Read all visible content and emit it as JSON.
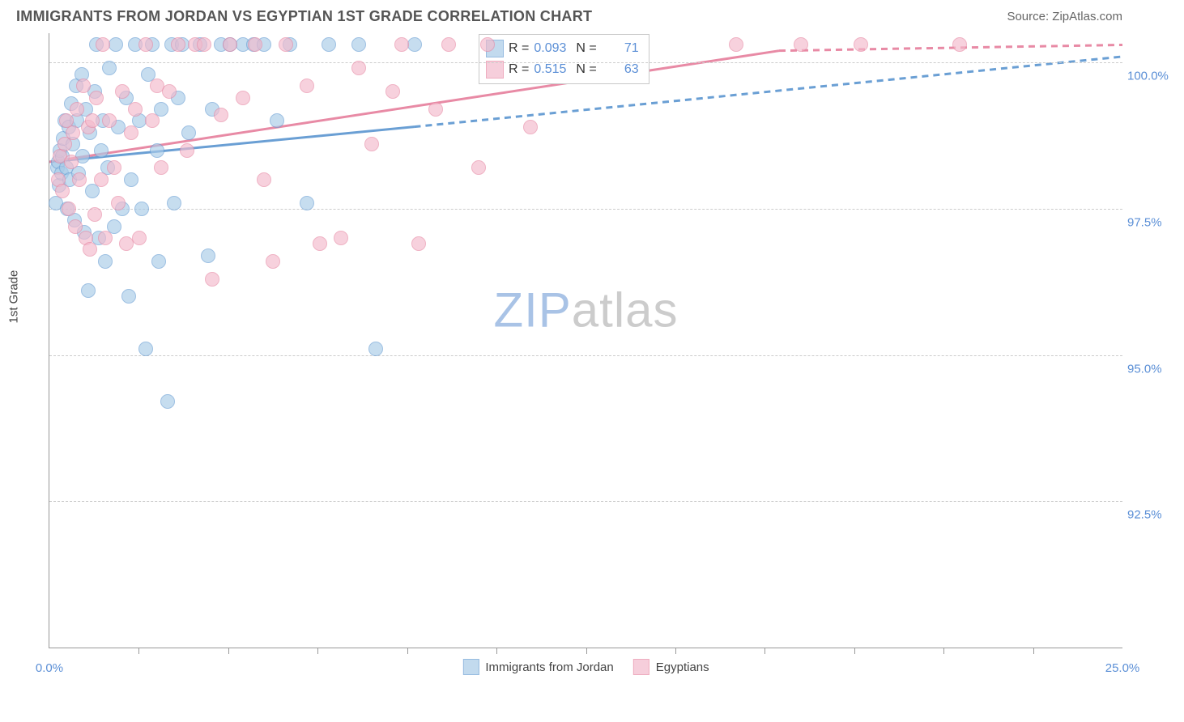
{
  "title": "IMMIGRANTS FROM JORDAN VS EGYPTIAN 1ST GRADE CORRELATION CHART",
  "source": "Source: ZipAtlas.com",
  "watermark": {
    "left": "ZIP",
    "right": "atlas"
  },
  "chart": {
    "type": "scatter",
    "background_color": "#ffffff",
    "grid_color": "#cccccc",
    "axis_color": "#999999",
    "ylabel": "1st Grade",
    "xlim": [
      0.0,
      25.0
    ],
    "ylim": [
      90.0,
      100.5
    ],
    "xticks": [
      0.0,
      25.0
    ],
    "xtick_labels": [
      "0.0%",
      "25.0%"
    ],
    "xtick_minor": [
      2.083,
      4.167,
      6.25,
      8.333,
      10.417,
      12.5,
      14.583,
      16.667,
      18.75,
      20.833,
      22.917
    ],
    "yticks": [
      92.5,
      95.0,
      97.5,
      100.0
    ],
    "ytick_labels": [
      "92.5%",
      "95.0%",
      "97.5%",
      "100.0%"
    ],
    "label_fontsize": 15,
    "tick_label_color": "#5b8fd6",
    "marker_radius": 9,
    "marker_stroke_width": 1.5,
    "marker_fill_opacity": 0.3,
    "series": [
      {
        "name": "Immigrants from Jordan",
        "color_stroke": "#6a9fd4",
        "color_fill": "#a9cbe8",
        "R": "0.093",
        "N": "71",
        "trend": {
          "solid": {
            "x1": 0.0,
            "y1": 98.3,
            "x2": 8.5,
            "y2": 98.9
          },
          "dashed": {
            "x1": 8.5,
            "y1": 98.9,
            "x2": 25.0,
            "y2": 100.1
          },
          "stroke_width": 3,
          "dash": "8,6"
        },
        "points": [
          [
            0.15,
            97.6
          ],
          [
            0.18,
            98.2
          ],
          [
            0.2,
            98.3
          ],
          [
            0.22,
            97.9
          ],
          [
            0.25,
            98.5
          ],
          [
            0.28,
            98.1
          ],
          [
            0.3,
            98.4
          ],
          [
            0.32,
            98.7
          ],
          [
            0.35,
            99.0
          ],
          [
            0.4,
            98.2
          ],
          [
            0.42,
            97.5
          ],
          [
            0.45,
            98.9
          ],
          [
            0.48,
            98.0
          ],
          [
            0.5,
            99.3
          ],
          [
            0.55,
            98.6
          ],
          [
            0.58,
            97.3
          ],
          [
            0.62,
            99.6
          ],
          [
            0.65,
            99.0
          ],
          [
            0.68,
            98.1
          ],
          [
            0.75,
            99.8
          ],
          [
            0.78,
            98.4
          ],
          [
            0.82,
            97.1
          ],
          [
            0.85,
            99.2
          ],
          [
            0.9,
            96.1
          ],
          [
            0.95,
            98.8
          ],
          [
            1.0,
            97.8
          ],
          [
            1.05,
            99.5
          ],
          [
            1.1,
            100.3
          ],
          [
            1.15,
            97.0
          ],
          [
            1.2,
            98.5
          ],
          [
            1.25,
            99.0
          ],
          [
            1.3,
            96.6
          ],
          [
            1.35,
            98.2
          ],
          [
            1.4,
            99.9
          ],
          [
            1.5,
            97.2
          ],
          [
            1.55,
            100.3
          ],
          [
            1.6,
            98.9
          ],
          [
            1.7,
            97.5
          ],
          [
            1.8,
            99.4
          ],
          [
            1.85,
            96.0
          ],
          [
            1.9,
            98.0
          ],
          [
            2.0,
            100.3
          ],
          [
            2.1,
            99.0
          ],
          [
            2.15,
            97.5
          ],
          [
            2.25,
            95.1
          ],
          [
            2.3,
            99.8
          ],
          [
            2.4,
            100.3
          ],
          [
            2.5,
            98.5
          ],
          [
            2.55,
            96.6
          ],
          [
            2.6,
            99.2
          ],
          [
            2.75,
            94.2
          ],
          [
            2.85,
            100.3
          ],
          [
            2.9,
            97.6
          ],
          [
            3.0,
            99.4
          ],
          [
            3.1,
            100.3
          ],
          [
            3.25,
            98.8
          ],
          [
            3.5,
            100.3
          ],
          [
            3.7,
            96.7
          ],
          [
            3.8,
            99.2
          ],
          [
            4.0,
            100.3
          ],
          [
            4.2,
            100.3
          ],
          [
            4.5,
            100.3
          ],
          [
            4.75,
            100.3
          ],
          [
            5.0,
            100.3
          ],
          [
            5.3,
            99.0
          ],
          [
            5.6,
            100.3
          ],
          [
            6.0,
            97.6
          ],
          [
            6.5,
            100.3
          ],
          [
            7.2,
            100.3
          ],
          [
            7.6,
            95.1
          ],
          [
            8.5,
            100.3
          ]
        ]
      },
      {
        "name": "Egyptians",
        "color_stroke": "#e88aa5",
        "color_fill": "#f3bacc",
        "R": "0.515",
        "N": "63",
        "trend": {
          "solid": {
            "x1": 0.0,
            "y1": 98.3,
            "x2": 17.0,
            "y2": 100.2
          },
          "dashed": {
            "x1": 17.0,
            "y1": 100.2,
            "x2": 25.0,
            "y2": 100.3
          },
          "stroke_width": 3,
          "dash": "8,6"
        },
        "points": [
          [
            0.2,
            98.0
          ],
          [
            0.25,
            98.4
          ],
          [
            0.3,
            97.8
          ],
          [
            0.35,
            98.6
          ],
          [
            0.4,
            99.0
          ],
          [
            0.45,
            97.5
          ],
          [
            0.5,
            98.3
          ],
          [
            0.55,
            98.8
          ],
          [
            0.6,
            97.2
          ],
          [
            0.65,
            99.2
          ],
          [
            0.7,
            98.0
          ],
          [
            0.8,
            99.6
          ],
          [
            0.85,
            97.0
          ],
          [
            0.9,
            98.9
          ],
          [
            0.95,
            96.8
          ],
          [
            1.0,
            99.0
          ],
          [
            1.05,
            97.4
          ],
          [
            1.1,
            99.4
          ],
          [
            1.2,
            98.0
          ],
          [
            1.25,
            100.3
          ],
          [
            1.3,
            97.0
          ],
          [
            1.4,
            99.0
          ],
          [
            1.5,
            98.2
          ],
          [
            1.6,
            97.6
          ],
          [
            1.7,
            99.5
          ],
          [
            1.8,
            96.9
          ],
          [
            1.9,
            98.8
          ],
          [
            2.0,
            99.2
          ],
          [
            2.1,
            97.0
          ],
          [
            2.25,
            100.3
          ],
          [
            2.4,
            99.0
          ],
          [
            2.5,
            99.6
          ],
          [
            2.6,
            98.2
          ],
          [
            2.8,
            99.5
          ],
          [
            3.0,
            100.3
          ],
          [
            3.2,
            98.5
          ],
          [
            3.4,
            100.3
          ],
          [
            3.6,
            100.3
          ],
          [
            3.8,
            96.3
          ],
          [
            4.0,
            99.1
          ],
          [
            4.2,
            100.3
          ],
          [
            4.5,
            99.4
          ],
          [
            4.8,
            100.3
          ],
          [
            5.0,
            98.0
          ],
          [
            5.2,
            96.6
          ],
          [
            5.5,
            100.3
          ],
          [
            6.0,
            99.6
          ],
          [
            6.3,
            96.9
          ],
          [
            6.8,
            97.0
          ],
          [
            7.2,
            99.9
          ],
          [
            7.5,
            98.6
          ],
          [
            8.0,
            99.5
          ],
          [
            8.2,
            100.3
          ],
          [
            8.6,
            96.9
          ],
          [
            9.0,
            99.2
          ],
          [
            9.3,
            100.3
          ],
          [
            10.0,
            98.2
          ],
          [
            10.2,
            100.3
          ],
          [
            11.2,
            98.9
          ],
          [
            16.0,
            100.3
          ],
          [
            17.5,
            100.3
          ],
          [
            18.9,
            100.3
          ],
          [
            21.2,
            100.3
          ]
        ]
      }
    ]
  },
  "bottom_legend": [
    "Immigrants from Jordan",
    "Egyptians"
  ]
}
